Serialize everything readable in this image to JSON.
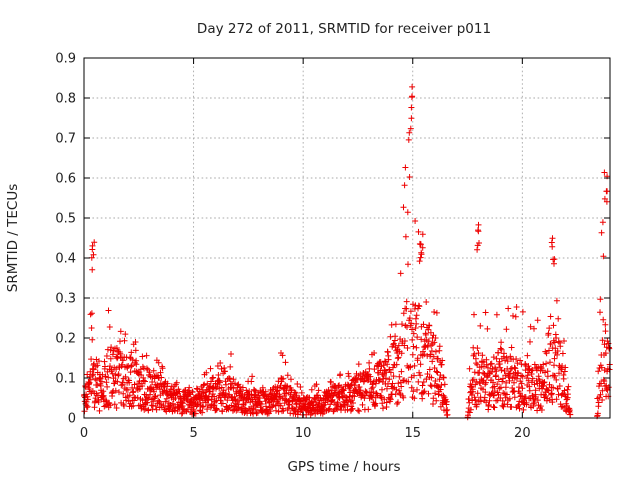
{
  "chart_data": {
    "type": "scatter",
    "title": "Day 272 of 2011, SRMTID for receiver p011",
    "xlabel": "GPS time / hours",
    "ylabel": "SRMTID / TECUs",
    "xlim": [
      0,
      24
    ],
    "ylim": [
      0,
      0.9
    ],
    "xticks": [
      0,
      5,
      10,
      15,
      20
    ],
    "xtick_labels": [
      "0",
      "5",
      "10",
      "15",
      "20"
    ],
    "yticks": [
      0,
      0.1,
      0.2,
      0.3,
      0.4,
      0.5,
      0.6,
      0.7,
      0.8,
      0.9
    ],
    "ytick_labels": [
      "0",
      "0.1",
      "0.2",
      "0.3",
      "0.4",
      "0.5",
      "0.6",
      "0.7",
      "0.8",
      "0.9"
    ],
    "grid": true,
    "legend": "none",
    "marker": "+",
    "color": "#ee0000",
    "series": [
      {
        "name": "SRMTID",
        "approximate_envelope": {
          "x": [
            0.0,
            0.2,
            0.4,
            0.6,
            0.8,
            1.0,
            1.5,
            2.0,
            2.5,
            3.0,
            3.5,
            4.0,
            4.5,
            5.0,
            5.5,
            6.0,
            6.5,
            7.0,
            7.5,
            8.0,
            8.5,
            9.0,
            9.5,
            10.0,
            10.5,
            11.0,
            11.5,
            12.0,
            12.5,
            13.0,
            13.5,
            14.0,
            14.5,
            14.8,
            15.0,
            15.3,
            15.6,
            16.0,
            16.3,
            16.6,
            17.0,
            17.5,
            17.8,
            18.0,
            18.5,
            19.0,
            19.5,
            20.0,
            20.5,
            21.0,
            21.3,
            21.6,
            21.9,
            22.2,
            22.6,
            23.0,
            23.4,
            23.7,
            24.0
          ],
          "peak": [
            0.1,
            0.12,
            0.45,
            0.3,
            0.22,
            0.3,
            0.22,
            0.23,
            0.2,
            0.16,
            0.14,
            0.1,
            0.08,
            0.08,
            0.12,
            0.14,
            0.19,
            0.13,
            0.11,
            0.1,
            0.11,
            0.18,
            0.1,
            0.08,
            0.08,
            0.12,
            0.12,
            0.11,
            0.14,
            0.16,
            0.18,
            0.22,
            0.42,
            0.83,
            0.55,
            0.48,
            0.34,
            0.28,
            0.25,
            0.0,
            0.0,
            0.0,
            0.5,
            0.32,
            0.27,
            0.33,
            0.28,
            0.3,
            0.26,
            0.24,
            0.45,
            0.4,
            0.31,
            0.0,
            0.0,
            0.0,
            0.0,
            0.65,
            0.4
          ],
          "typical": [
            0.04,
            0.06,
            0.1,
            0.08,
            0.06,
            0.1,
            0.1,
            0.09,
            0.08,
            0.07,
            0.06,
            0.05,
            0.04,
            0.04,
            0.05,
            0.06,
            0.07,
            0.05,
            0.04,
            0.04,
            0.04,
            0.06,
            0.04,
            0.03,
            0.03,
            0.04,
            0.05,
            0.05,
            0.06,
            0.07,
            0.08,
            0.1,
            0.14,
            0.2,
            0.18,
            0.16,
            0.14,
            0.12,
            0.1,
            0.0,
            0.0,
            0.0,
            0.12,
            0.1,
            0.08,
            0.1,
            0.09,
            0.08,
            0.07,
            0.08,
            0.15,
            0.12,
            0.1,
            0.0,
            0.0,
            0.0,
            0.0,
            0.15,
            0.1
          ]
        },
        "notable_values": [
          {
            "x": 0.4,
            "y": 0.45
          },
          {
            "x": 14.9,
            "y": 0.83
          },
          {
            "x": 15.4,
            "y": 0.48
          },
          {
            "x": 18.0,
            "y": 0.49
          },
          {
            "x": 21.4,
            "y": 0.45
          },
          {
            "x": 23.8,
            "y": 0.65
          }
        ]
      }
    ]
  }
}
